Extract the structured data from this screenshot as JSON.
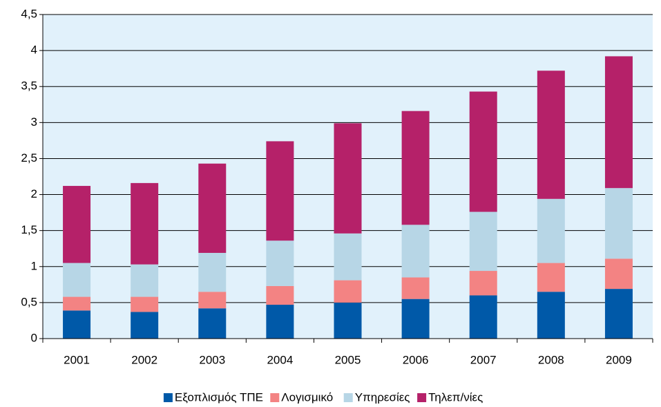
{
  "chart_data": {
    "type": "stacked_bar",
    "categories": [
      "2001",
      "2002",
      "2003",
      "2004",
      "2005",
      "2006",
      "2007",
      "2008",
      "2009"
    ],
    "series": [
      {
        "name": "Εξοπλισμός ΤΠΕ",
        "color": "#0059a8",
        "values": [
          0.39,
          0.37,
          0.42,
          0.47,
          0.5,
          0.55,
          0.6,
          0.65,
          0.69
        ]
      },
      {
        "name": "Λογισμικό",
        "color": "#f38383",
        "values": [
          0.19,
          0.21,
          0.23,
          0.26,
          0.31,
          0.3,
          0.34,
          0.4,
          0.42
        ]
      },
      {
        "name": "Υπηρεσίες",
        "color": "#b7d6e6",
        "values": [
          0.47,
          0.45,
          0.54,
          0.63,
          0.65,
          0.73,
          0.82,
          0.89,
          0.98
        ]
      },
      {
        "name": "Τηλεπ/νίες",
        "color": "#b52169",
        "values": [
          1.07,
          1.13,
          1.24,
          1.38,
          1.53,
          1.58,
          1.67,
          1.78,
          1.83
        ]
      }
    ],
    "ylim": [
      0,
      4.5
    ],
    "yticks": [
      0,
      {
        "value": 0.5,
        "label": "0,5"
      },
      1,
      {
        "value": 1.5,
        "label": "1,5"
      },
      2,
      {
        "value": 2.5,
        "label": "2,5"
      },
      3,
      {
        "value": 3.5,
        "label": "3,5"
      },
      4,
      {
        "value": 4.5,
        "label": "4,5"
      }
    ],
    "grid": true,
    "legend": "bottom"
  }
}
